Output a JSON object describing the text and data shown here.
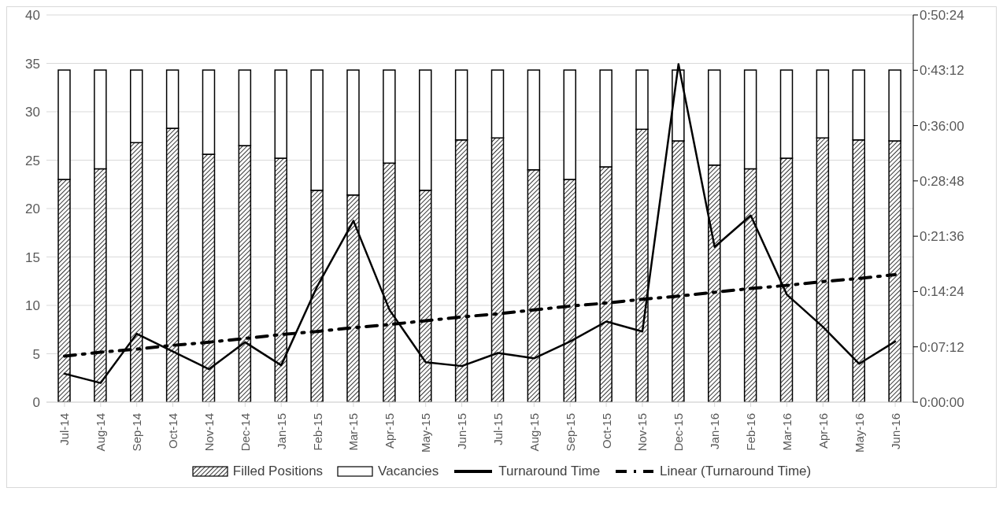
{
  "chart_data": {
    "type": "bar",
    "stacked": true,
    "categories": [
      "Jul-14",
      "Aug-14",
      "Sep-14",
      "Oct-14",
      "Nov-14",
      "Dec-14",
      "Jan-15",
      "Feb-15",
      "Mar-15",
      "Apr-15",
      "May-15",
      "Jun-15",
      "Jul-15",
      "Aug-15",
      "Sep-15",
      "Oct-15",
      "Nov-15",
      "Dec-15",
      "Jan-16",
      "Feb-16",
      "Mar-16",
      "Apr-16",
      "May-16",
      "Jun-16"
    ],
    "series": [
      {
        "name": "Filled Positions",
        "color": "#000000",
        "values": [
          23.0,
          24.1,
          26.8,
          28.3,
          25.6,
          26.5,
          25.2,
          21.9,
          21.4,
          24.7,
          21.9,
          27.1,
          27.3,
          24.0,
          23.0,
          24.3,
          28.2,
          27.0,
          24.5,
          24.1,
          25.2,
          27.3,
          27.1,
          27.0
        ]
      },
      {
        "name": "Vacancies",
        "color": "#ffffff",
        "values": [
          11.3,
          10.2,
          7.5,
          6.0,
          8.7,
          7.8,
          9.1,
          12.4,
          12.9,
          9.6,
          12.4,
          7.2,
          7.0,
          10.3,
          11.3,
          10.0,
          6.1,
          7.3,
          9.8,
          10.2,
          9.1,
          7.0,
          7.2,
          7.3
        ]
      },
      {
        "name": "Turnaround Time",
        "type": "line",
        "axis": "y2",
        "color": "#000000",
        "line_style": "solid",
        "values": [
          3.7,
          2.5,
          8.9,
          6.6,
          4.3,
          7.8,
          4.8,
          15.1,
          23.6,
          12.0,
          5.2,
          4.7,
          6.4,
          5.7,
          7.9,
          10.5,
          9.2,
          44.0,
          20.2,
          24.3,
          14.0,
          9.8,
          5.0,
          7.9
        ]
      },
      {
        "name": "Linear (Turnaround Time)",
        "type": "line",
        "axis": "y2",
        "color": "#000000",
        "line_style": "dashed",
        "values": [
          6.0,
          6.5,
          6.9,
          7.4,
          7.8,
          8.3,
          8.8,
          9.2,
          9.7,
          10.1,
          10.6,
          11.1,
          11.5,
          12.0,
          12.5,
          12.9,
          13.4,
          13.8,
          14.3,
          14.8,
          15.2,
          15.7,
          16.1,
          16.6
        ]
      }
    ],
    "ylim": [
      0,
      40
    ],
    "yticks": [
      0,
      5,
      10,
      15,
      20,
      25,
      30,
      35,
      40
    ],
    "y2lim": [
      0,
      50.4
    ],
    "y2ticks": [
      {
        "value": 0,
        "label": "0:00:00"
      },
      {
        "value": 7.2,
        "label": "0:07:12"
      },
      {
        "value": 14.4,
        "label": "0:14:24"
      },
      {
        "value": 21.6,
        "label": "0:21:36"
      },
      {
        "value": 28.8,
        "label": "0:28:48"
      },
      {
        "value": 36,
        "label": "0:36:00"
      },
      {
        "value": 43.2,
        "label": "0:43:12"
      },
      {
        "value": 50.4,
        "label": "0:50:24"
      }
    ],
    "grid": "y",
    "legend": "bottom",
    "marker": "none"
  }
}
